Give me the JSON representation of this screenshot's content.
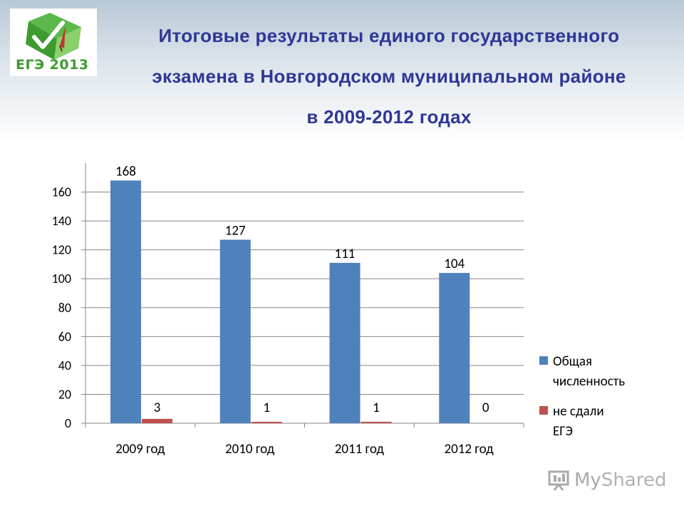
{
  "title": {
    "line1": "Итоговые результаты единого государственного",
    "line2": "экзамена в Новгородском муниципальном районе",
    "line3": "в 2009-2012 годах"
  },
  "logo": {
    "text": "ЕГЭ 2013"
  },
  "watermark": {
    "text_my": "My",
    "text_shared": "Shared"
  },
  "colors": {
    "title": "#2e3796",
    "series_total": "#4f81bd",
    "series_failed": "#c0504d",
    "logo_green": "#3d9b2f"
  },
  "chart_data": {
    "type": "bar",
    "categories": [
      "2009 год",
      "2010 год",
      "2011 год",
      "2012 год"
    ],
    "series": [
      {
        "name": "Общая численность",
        "values": [
          168,
          127,
          111,
          104
        ],
        "color": "#4f81bd"
      },
      {
        "name": "не сдали ЕГЭ",
        "values": [
          3,
          1,
          1,
          0
        ],
        "color": "#c0504d"
      }
    ],
    "ylim": [
      0,
      180
    ],
    "yticks": [
      0,
      20,
      40,
      60,
      80,
      100,
      120,
      140,
      160
    ],
    "grid": true,
    "legend": "right",
    "legend_lines": [
      [
        "Общая",
        "численность"
      ],
      [
        "не сдали",
        "ЕГЭ"
      ]
    ]
  }
}
